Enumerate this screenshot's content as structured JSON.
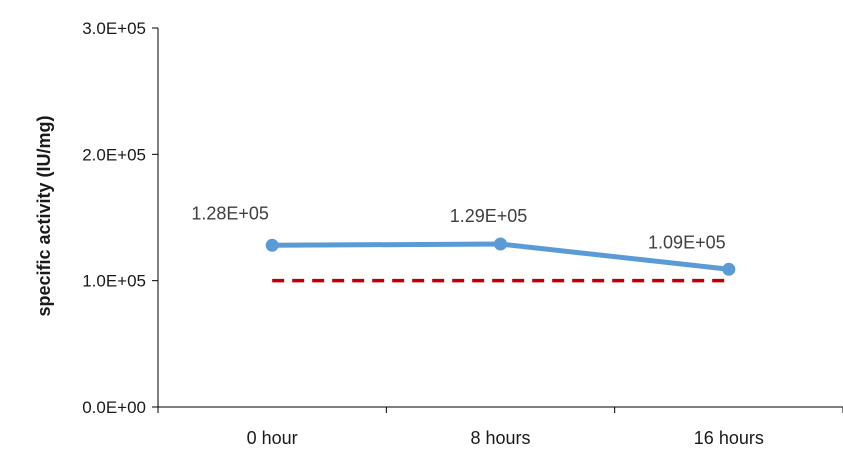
{
  "chart_data": {
    "type": "line",
    "title": "",
    "xlabel": "",
    "ylabel": "specific activity (IU/mg)",
    "categories": [
      "0 hour",
      "8 hours",
      "16 hours"
    ],
    "series": [
      {
        "values": [
          128000,
          129000,
          109000
        ],
        "data_labels": [
          "1.28E+05",
          "1.29E+05",
          "1.09E+05"
        ],
        "color": "#5b9bd5"
      }
    ],
    "reference_line": {
      "value": 100000,
      "style": "dashed",
      "color": "#c00000"
    },
    "ylim": [
      0,
      300000
    ],
    "y_ticks": [
      0,
      100000,
      200000,
      300000
    ],
    "y_tick_labels": [
      "0.0E+00",
      "1.0E+05",
      "2.0E+05",
      "3.0E+05"
    ],
    "grid": false,
    "legend": "none"
  }
}
